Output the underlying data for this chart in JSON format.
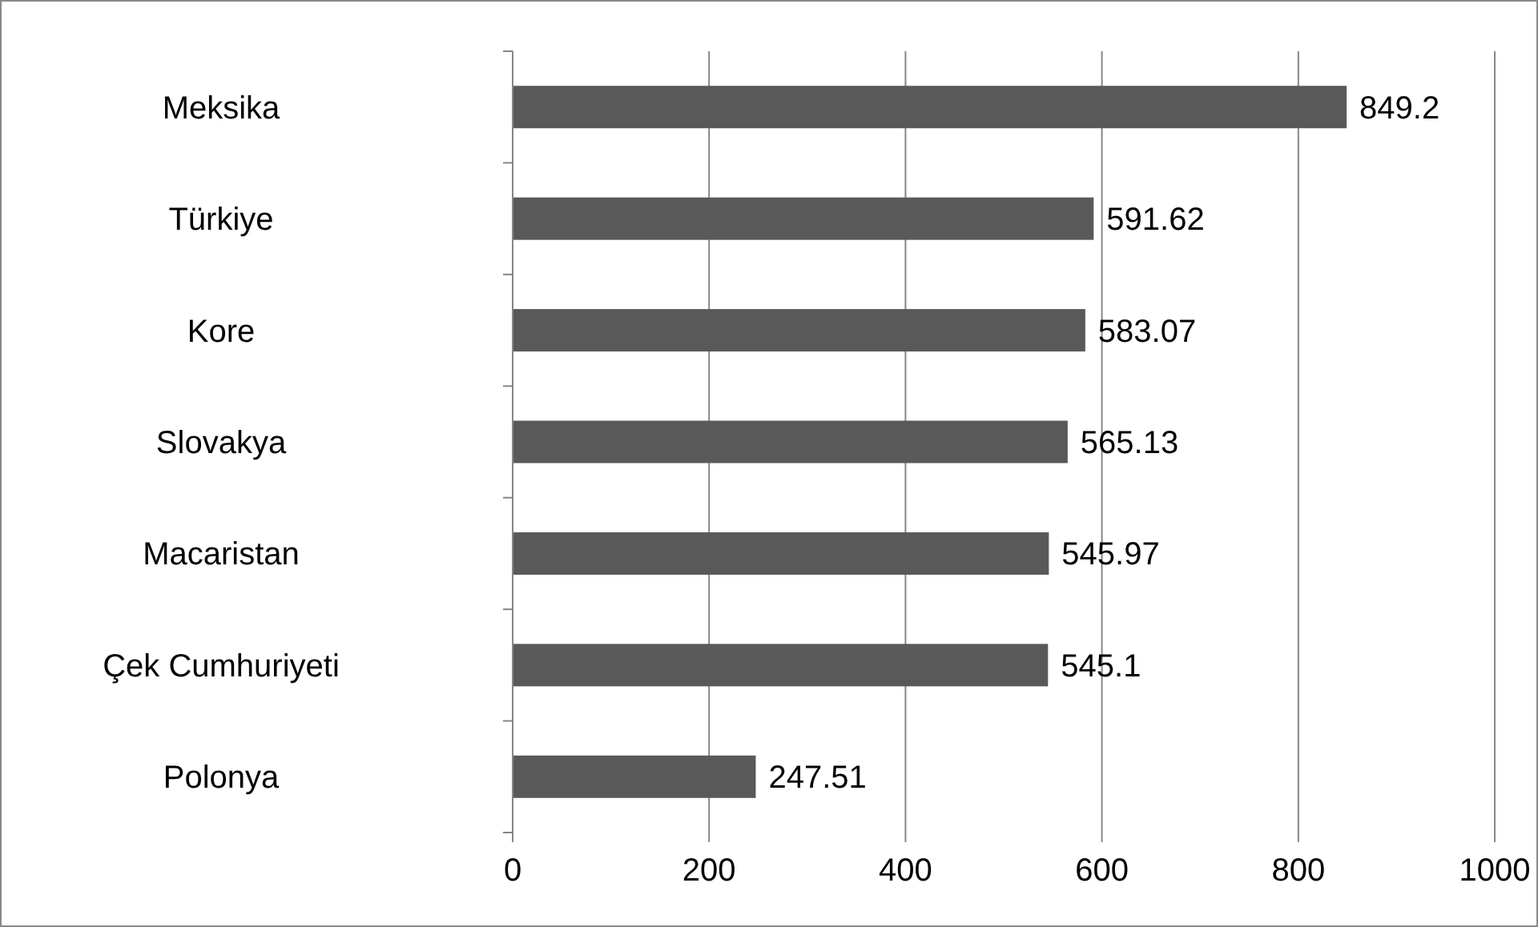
{
  "chart_data": {
    "type": "bar",
    "orientation": "horizontal",
    "categories": [
      "Meksika",
      "Türkiye",
      "Kore",
      "Slovakya",
      "Macaristan",
      "Çek Cumhuriyeti",
      "Polonya"
    ],
    "values": [
      849.2,
      591.62,
      583.07,
      565.13,
      545.97,
      545.1,
      247.51
    ],
    "color": "#595959",
    "xlim": [
      0,
      1000
    ],
    "xticks": [
      0,
      200,
      400,
      600,
      800,
      1000
    ],
    "grid": "x",
    "data_labels": true
  }
}
